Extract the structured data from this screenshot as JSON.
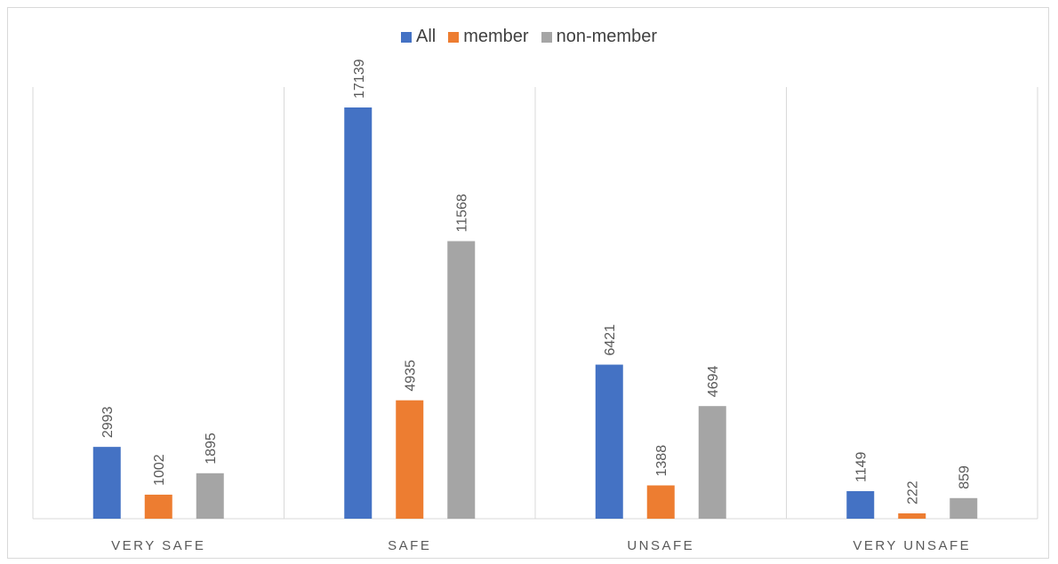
{
  "chart_data": {
    "type": "bar",
    "categories": [
      "VERY SAFE",
      "SAFE",
      "UNSAFE",
      "VERY UNSAFE"
    ],
    "series": [
      {
        "name": "All",
        "color": "#4472c4",
        "values": [
          2993,
          17139,
          6421,
          1149
        ]
      },
      {
        "name": "member",
        "color": "#ed7d31",
        "values": [
          1002,
          4935,
          1388,
          222
        ]
      },
      {
        "name": "non-member",
        "color": "#a5a5a5",
        "values": [
          1895,
          11568,
          4694,
          859
        ]
      }
    ],
    "ylim": [
      0,
      17139
    ],
    "legend_position": "top",
    "grid": "vertical category separators",
    "data_labels": "rotated"
  }
}
